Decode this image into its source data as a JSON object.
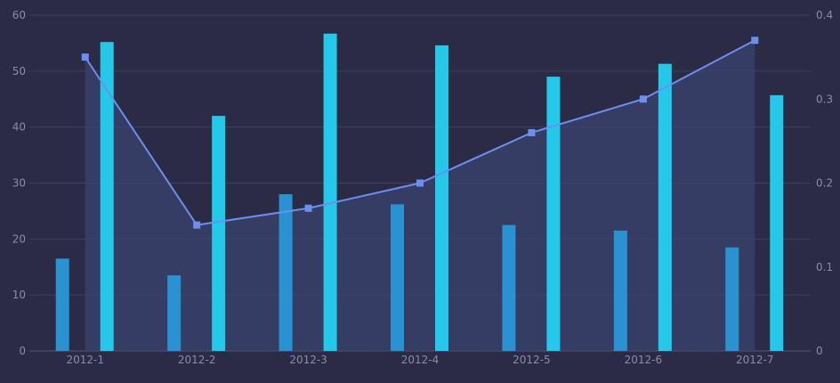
{
  "chart_data": {
    "type": "bar",
    "categories": [
      "2012-1",
      "2012-2",
      "2012-3",
      "2012-4",
      "2012-5",
      "2012-6",
      "2012-7"
    ],
    "series": [
      {
        "type": "bar",
        "axis": "left",
        "color": "#2a92d0",
        "values": [
          16.5,
          13.5,
          28,
          26.2,
          22.5,
          21.5,
          18.5
        ]
      },
      {
        "type": "bar",
        "axis": "left",
        "color": "#26c8ea",
        "values": [
          55.2,
          42,
          56.7,
          54.6,
          49,
          51.3,
          45.7
        ]
      },
      {
        "type": "line",
        "axis": "right",
        "color": "#6d8ef0",
        "area": true,
        "values": [
          0.35,
          0.15,
          0.17,
          0.2,
          0.26,
          0.3,
          0.37
        ]
      }
    ],
    "ylim": [
      0,
      60
    ],
    "y_ticks": [
      0,
      10,
      20,
      30,
      40,
      50,
      60
    ],
    "y2lim": [
      0,
      0.4
    ],
    "y2_ticks": [
      0,
      0.1,
      0.2,
      0.3,
      0.4
    ],
    "grid": true,
    "background": "#2b2b45"
  }
}
